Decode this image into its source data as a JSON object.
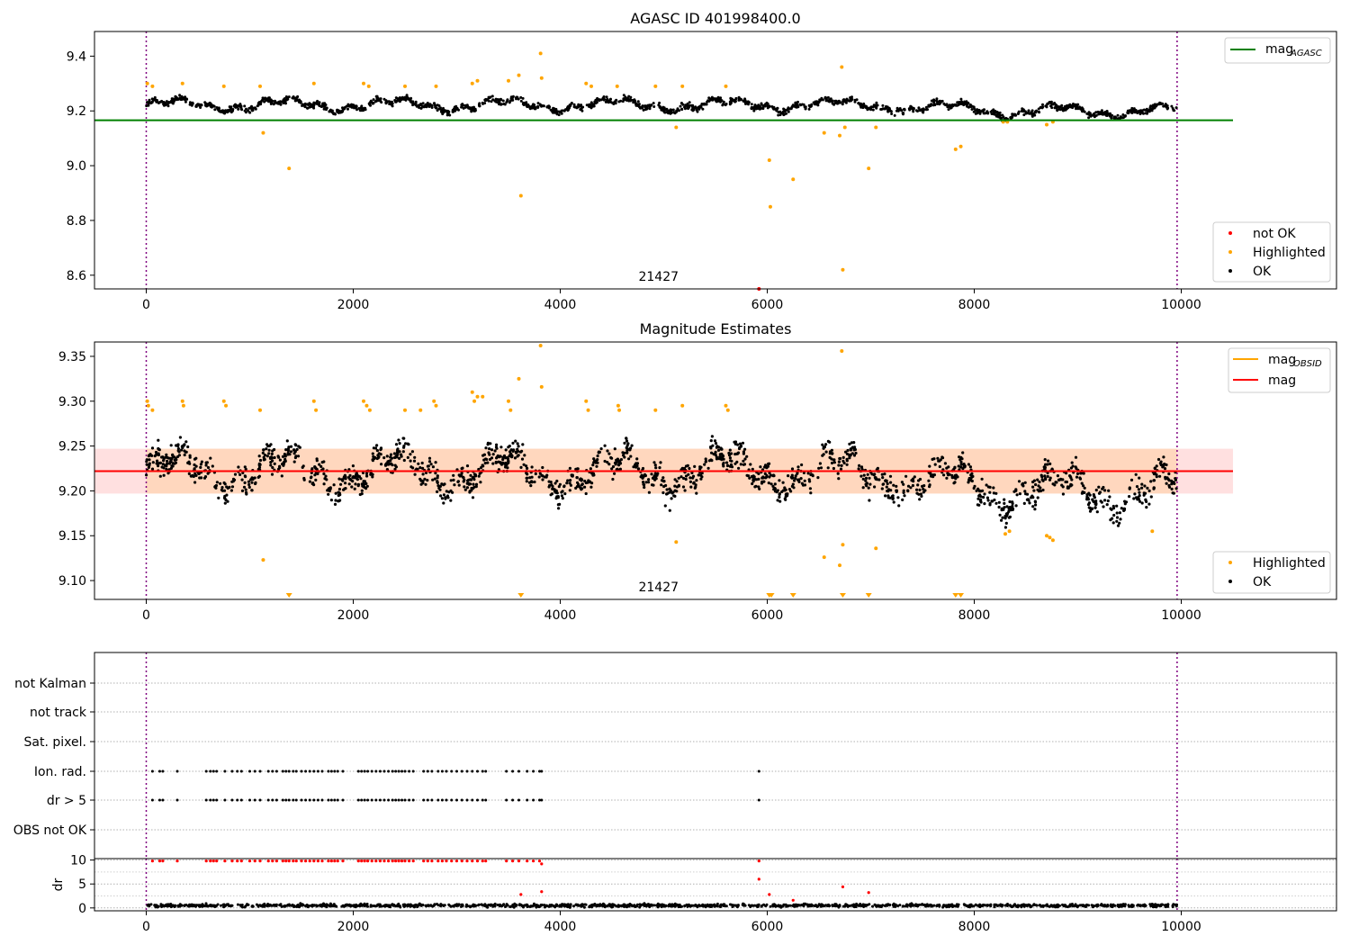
{
  "chart_data": [
    {
      "type": "scatter",
      "title": "AGASC ID 401998400.0",
      "xlim": [
        -500,
        11500
      ],
      "ylim": [
        8.55,
        9.49
      ],
      "xticks": [
        0,
        2000,
        4000,
        6000,
        8000,
        10000
      ],
      "yticks": [
        8.6,
        8.8,
        9.0,
        9.2,
        9.4
      ],
      "ytick_labels": [
        "8.6",
        "8.8",
        "9.0",
        "9.2",
        "9.4"
      ],
      "obsid_label": "21427",
      "obsid_label_x": 4950,
      "vlines": [
        0,
        9960
      ],
      "mag_agasc": {
        "label": "mag_AGASC",
        "value": 9.166,
        "x_range": [
          -500,
          10500
        ],
        "color": "#008000"
      },
      "legend_upper": [
        {
          "label": "mag",
          "sub": "AGASC",
          "color": "#008000"
        }
      ],
      "legend_lower": [
        {
          "label": "not OK",
          "color": "#ff0000"
        },
        {
          "label": "Highlighted",
          "color": "#ffa500"
        },
        {
          "label": "OK",
          "color": "#000000"
        }
      ],
      "series": [
        {
          "name": "OK",
          "color": "#000000",
          "description": "dense time series around 9.22, x from 0 to 9960"
        },
        {
          "name": "Highlighted",
          "color": "#ffa500",
          "points": [
            [
              10,
              9.3
            ],
            [
              60,
              9.29
            ],
            [
              350,
              9.3
            ],
            [
              750,
              9.29
            ],
            [
              1100,
              9.29
            ],
            [
              1130,
              9.12
            ],
            [
              1380,
              8.99
            ],
            [
              1620,
              9.3
            ],
            [
              2100,
              9.3
            ],
            [
              2150,
              9.29
            ],
            [
              2500,
              9.29
            ],
            [
              2800,
              9.29
            ],
            [
              3150,
              9.3
            ],
            [
              3200,
              9.31
            ],
            [
              3500,
              9.31
            ],
            [
              3600,
              9.33
            ],
            [
              3620,
              8.89
            ],
            [
              3810,
              9.41
            ],
            [
              3820,
              9.32
            ],
            [
              4250,
              9.3
            ],
            [
              4300,
              9.29
            ],
            [
              4550,
              9.29
            ],
            [
              4920,
              9.29
            ],
            [
              5120,
              9.14
            ],
            [
              5180,
              9.29
            ],
            [
              5600,
              9.29
            ],
            [
              6020,
              9.02
            ],
            [
              6030,
              8.85
            ],
            [
              6250,
              8.95
            ],
            [
              6550,
              9.12
            ],
            [
              6700,
              9.11
            ],
            [
              6720,
              9.36
            ],
            [
              6730,
              8.62
            ],
            [
              6750,
              9.14
            ],
            [
              6980,
              8.99
            ],
            [
              7050,
              9.14
            ],
            [
              7820,
              9.06
            ],
            [
              7870,
              9.07
            ],
            [
              8280,
              9.16
            ],
            [
              8320,
              9.16
            ],
            [
              8700,
              9.15
            ],
            [
              8760,
              9.16
            ]
          ]
        },
        {
          "name": "not OK",
          "color": "#ff0000",
          "points": [
            [
              5920,
              8.55
            ]
          ]
        }
      ]
    },
    {
      "type": "scatter",
      "title": "Magnitude Estimates",
      "xlim": [
        -500,
        11500
      ],
      "ylim": [
        9.079,
        9.366
      ],
      "xticks": [
        0,
        2000,
        4000,
        6000,
        8000,
        10000
      ],
      "yticks": [
        9.1,
        9.15,
        9.2,
        9.25,
        9.3,
        9.35
      ],
      "ytick_labels": [
        "9.10",
        "9.15",
        "9.20",
        "9.25",
        "9.30",
        "9.35"
      ],
      "obsid_label": "21427",
      "obsid_label_x": 4950,
      "vlines": [
        0,
        9960
      ],
      "mag": {
        "label": "mag",
        "value": 9.222,
        "band": [
          9.197,
          9.247
        ],
        "x_range": [
          -500,
          10500
        ],
        "color": "#ff0000"
      },
      "mag_obsid": {
        "label": "mag_OBSID",
        "value": 9.222,
        "band": [
          9.197,
          9.247
        ],
        "x_range": [
          0,
          9960
        ],
        "color": "#ffa500"
      },
      "legend_upper": [
        {
          "label": "mag",
          "sub": "OBSID",
          "color": "#ffa500"
        },
        {
          "label": "mag",
          "sub": "",
          "color": "#ff0000"
        }
      ],
      "legend_lower": [
        {
          "label": "Highlighted",
          "color": "#ffa500"
        },
        {
          "label": "OK",
          "color": "#000000"
        }
      ],
      "series": [
        {
          "name": "OK",
          "color": "#000000",
          "description": "dense time series around 9.22, x from 0 to 9960"
        },
        {
          "name": "Highlighted",
          "color": "#ffa500",
          "points": [
            [
              10,
              9.3
            ],
            [
              20,
              9.295
            ],
            [
              60,
              9.29
            ],
            [
              350,
              9.3
            ],
            [
              360,
              9.295
            ],
            [
              750,
              9.3
            ],
            [
              770,
              9.295
            ],
            [
              1100,
              9.29
            ],
            [
              1130,
              9.123
            ],
            [
              1620,
              9.3
            ],
            [
              1640,
              9.29
            ],
            [
              2100,
              9.3
            ],
            [
              2130,
              9.295
            ],
            [
              2160,
              9.29
            ],
            [
              2500,
              9.29
            ],
            [
              2650,
              9.29
            ],
            [
              2780,
              9.3
            ],
            [
              2800,
              9.295
            ],
            [
              3150,
              9.31
            ],
            [
              3170,
              9.3
            ],
            [
              3200,
              9.305
            ],
            [
              3250,
              9.305
            ],
            [
              3500,
              9.3
            ],
            [
              3520,
              9.29
            ],
            [
              3600,
              9.325
            ],
            [
              3810,
              9.362
            ],
            [
              3820,
              9.316
            ],
            [
              4250,
              9.3
            ],
            [
              4270,
              9.29
            ],
            [
              4560,
              9.295
            ],
            [
              4570,
              9.29
            ],
            [
              4920,
              9.29
            ],
            [
              5120,
              9.143
            ],
            [
              5180,
              9.295
            ],
            [
              5600,
              9.295
            ],
            [
              5620,
              9.29
            ],
            [
              6550,
              9.126
            ],
            [
              6700,
              9.117
            ],
            [
              6720,
              9.356
            ],
            [
              6730,
              9.14
            ],
            [
              7050,
              9.136
            ],
            [
              8300,
              9.152
            ],
            [
              8340,
              9.155
            ],
            [
              8700,
              9.15
            ],
            [
              8730,
              9.148
            ],
            [
              8760,
              9.145
            ],
            [
              9720,
              9.155
            ]
          ]
        },
        {
          "name": "Below range",
          "color": "#ffa500",
          "marker": "triangle-down",
          "points": [
            [
              1380,
              9.08
            ],
            [
              3620,
              9.08
            ],
            [
              6020,
              9.08
            ],
            [
              6040,
              9.08
            ],
            [
              6250,
              9.08
            ],
            [
              6730,
              9.08
            ],
            [
              6980,
              9.08
            ],
            [
              7820,
              9.08
            ],
            [
              7870,
              9.08
            ]
          ]
        }
      ]
    },
    {
      "type": "scatter",
      "title": "",
      "xlim": [
        -500,
        11500
      ],
      "categories": [
        "OBS not OK",
        "dr > 5",
        "Ion. rad.",
        "Sat. pixel.",
        "not track",
        "not Kalman"
      ],
      "vlines": [
        0,
        9960
      ],
      "flag_points": {
        "dr > 5": [
          60,
          130,
          160,
          300,
          580,
          620,
          650,
          680,
          760,
          830,
          880,
          920,
          1000,
          1050,
          1100,
          1180,
          1220,
          1260,
          1320,
          1350,
          1380,
          1420,
          1450,
          1500,
          1540,
          1580,
          1620,
          1660,
          1700,
          1760,
          1790,
          1820,
          1850,
          1900,
          2050,
          2080,
          2110,
          2140,
          2180,
          2220,
          2260,
          2300,
          2340,
          2380,
          2410,
          2440,
          2470,
          2500,
          2540,
          2580,
          2680,
          2720,
          2760,
          2820,
          2860,
          2900,
          2950,
          3000,
          3050,
          3100,
          3150,
          3200,
          3250,
          3280,
          3480,
          3540,
          3600,
          3680,
          3740,
          3800,
          3820,
          5920
        ],
        "Ion. rad.": [
          60,
          130,
          160,
          300,
          580,
          620,
          650,
          680,
          760,
          830,
          880,
          920,
          1000,
          1050,
          1100,
          1180,
          1220,
          1260,
          1320,
          1350,
          1380,
          1420,
          1450,
          1500,
          1540,
          1580,
          1620,
          1660,
          1700,
          1760,
          1790,
          1820,
          1850,
          1900,
          2050,
          2080,
          2110,
          2140,
          2180,
          2220,
          2260,
          2300,
          2340,
          2380,
          2410,
          2440,
          2470,
          2500,
          2540,
          2580,
          2680,
          2720,
          2760,
          2820,
          2860,
          2900,
          2950,
          3000,
          3050,
          3100,
          3150,
          3200,
          3250,
          3280,
          3480,
          3540,
          3600,
          3680,
          3740,
          3800,
          3820,
          5920
        ]
      }
    },
    {
      "type": "scatter",
      "title": "",
      "ylabel": "dr",
      "xlim": [
        -500,
        11500
      ],
      "ylim": [
        -0.6,
        10.3
      ],
      "xticks": [
        0,
        2000,
        4000,
        6000,
        8000,
        10000
      ],
      "yticks": [
        0,
        5,
        10
      ],
      "ytick_labels": [
        "0",
        "5",
        "10"
      ],
      "vlines": [
        0,
        9960
      ],
      "series": [
        {
          "name": "OK",
          "color": "#000000",
          "description": "dr values between 0 and 1.5"
        },
        {
          "name": "not OK",
          "color": "#ff0000",
          "points": [
            [
              60,
              9.8
            ],
            [
              130,
              9.8
            ],
            [
              160,
              9.8
            ],
            [
              300,
              9.8
            ],
            [
              580,
              9.8
            ],
            [
              620,
              9.8
            ],
            [
              650,
              9.8
            ],
            [
              680,
              9.8
            ],
            [
              760,
              9.8
            ],
            [
              830,
              9.8
            ],
            [
              880,
              9.8
            ],
            [
              920,
              9.8
            ],
            [
              1000,
              9.8
            ],
            [
              1050,
              9.8
            ],
            [
              1100,
              9.8
            ],
            [
              1180,
              9.8
            ],
            [
              1220,
              9.8
            ],
            [
              1260,
              9.8
            ],
            [
              1320,
              9.8
            ],
            [
              1350,
              9.8
            ],
            [
              1380,
              9.8
            ],
            [
              1420,
              9.8
            ],
            [
              1450,
              9.8
            ],
            [
              1500,
              9.8
            ],
            [
              1540,
              9.8
            ],
            [
              1580,
              9.8
            ],
            [
              1620,
              9.8
            ],
            [
              1660,
              9.8
            ],
            [
              1700,
              9.8
            ],
            [
              1760,
              9.8
            ],
            [
              1790,
              9.8
            ],
            [
              1820,
              9.8
            ],
            [
              1850,
              9.8
            ],
            [
              1900,
              9.8
            ],
            [
              2050,
              9.8
            ],
            [
              2080,
              9.8
            ],
            [
              2110,
              9.8
            ],
            [
              2140,
              9.8
            ],
            [
              2180,
              9.8
            ],
            [
              2220,
              9.8
            ],
            [
              2260,
              9.8
            ],
            [
              2300,
              9.8
            ],
            [
              2340,
              9.8
            ],
            [
              2380,
              9.8
            ],
            [
              2410,
              9.8
            ],
            [
              2440,
              9.8
            ],
            [
              2470,
              9.8
            ],
            [
              2500,
              9.8
            ],
            [
              2540,
              9.8
            ],
            [
              2580,
              9.8
            ],
            [
              2680,
              9.8
            ],
            [
              2720,
              9.8
            ],
            [
              2760,
              9.8
            ],
            [
              2820,
              9.8
            ],
            [
              2860,
              9.8
            ],
            [
              2900,
              9.8
            ],
            [
              2950,
              9.8
            ],
            [
              3000,
              9.8
            ],
            [
              3050,
              9.8
            ],
            [
              3100,
              9.8
            ],
            [
              3150,
              9.8
            ],
            [
              3200,
              9.8
            ],
            [
              3250,
              9.8
            ],
            [
              3280,
              9.8
            ],
            [
              3480,
              9.8
            ],
            [
              3540,
              9.8
            ],
            [
              3600,
              9.8
            ],
            [
              3680,
              9.8
            ],
            [
              3740,
              9.8
            ],
            [
              3800,
              9.8
            ],
            [
              3820,
              9.2
            ],
            [
              3620,
              2.8
            ],
            [
              3820,
              3.4
            ],
            [
              5920,
              9.8
            ],
            [
              5920,
              6.0
            ],
            [
              6730,
              4.4
            ],
            [
              6980,
              3.2
            ],
            [
              6020,
              2.8
            ],
            [
              6250,
              1.6
            ]
          ]
        }
      ]
    }
  ]
}
